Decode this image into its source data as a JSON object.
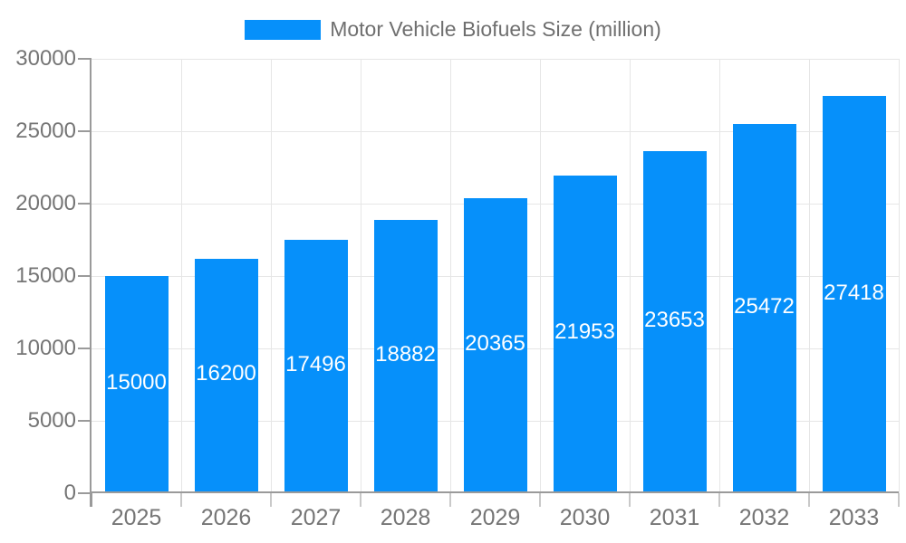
{
  "legend": {
    "label": "Motor Vehicle Biofuels Size (million)",
    "swatch_color": "#0690fa"
  },
  "colors": {
    "bar": "#0690fa",
    "grid": "#e6e6e6",
    "axis": "#9a9a9a",
    "category_tick": "#c9c9c9",
    "axis_text": "#757575",
    "value_label_text": "#ffffff",
    "legend_text": "#6f6f6f",
    "background": "#ffffff"
  },
  "chart_data": {
    "type": "bar",
    "title": "Motor Vehicle Biofuels Size (million)",
    "categories": [
      "2025",
      "2026",
      "2027",
      "2028",
      "2029",
      "2030",
      "2031",
      "2032",
      "2033"
    ],
    "series": [
      {
        "name": "Motor Vehicle Biofuels Size (million)",
        "values": [
          15000,
          16200,
          17496,
          18882,
          20365,
          21953,
          23653,
          25472,
          27418
        ]
      }
    ],
    "xlabel": "",
    "ylabel": "",
    "ylim": [
      0,
      30000
    ],
    "y_ticks": [
      0,
      5000,
      10000,
      15000,
      20000,
      25000,
      30000
    ],
    "grid": true,
    "legend_position": "top-center",
    "value_labels": "inside-middle-white"
  }
}
